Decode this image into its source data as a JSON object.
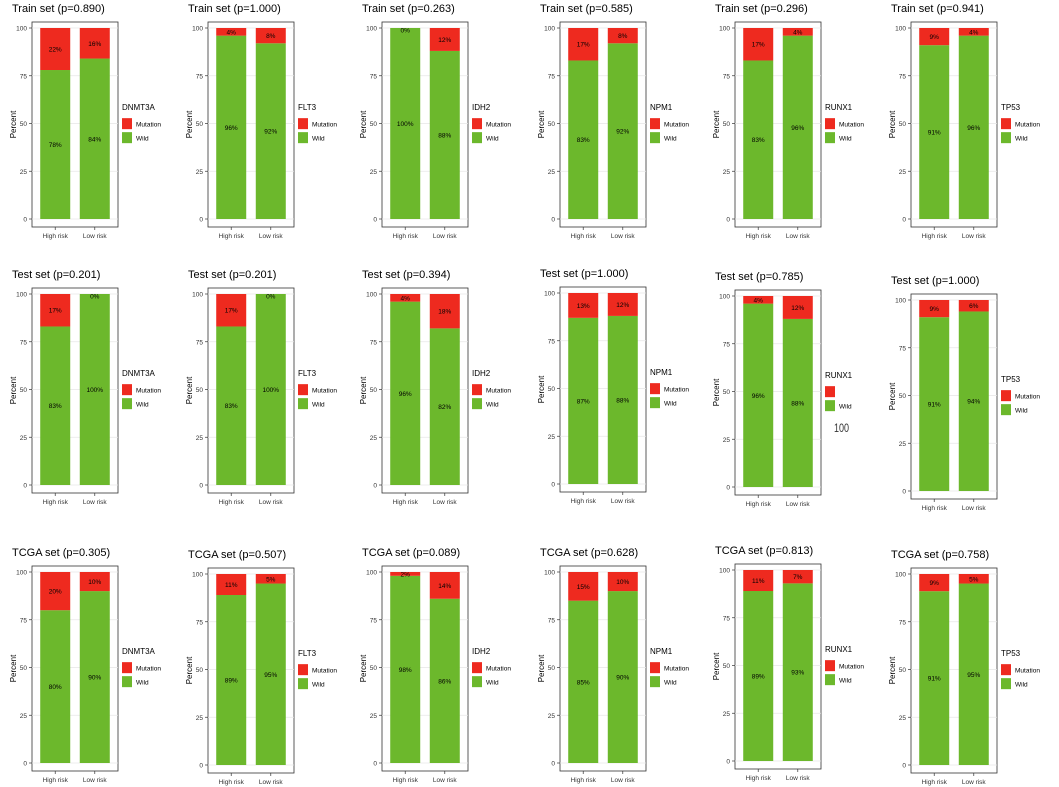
{
  "colors": {
    "mutation": "#ee2a1f",
    "wild": "#6cb82c",
    "grid": "#e6e6e6",
    "panel_border": "#333333"
  },
  "common": {
    "ylabel": "Percent",
    "y_ticks": [
      "0",
      "25",
      "50",
      "75",
      "100"
    ],
    "ylim": [
      0,
      100
    ],
    "categories": [
      "High risk",
      "Low risk"
    ],
    "legend_labels": [
      "Mutation",
      "Wild"
    ]
  },
  "stray_mark": "100",
  "chart_data": [
    {
      "type": "bar",
      "stacked": true,
      "title": "Train set (p=0.890)",
      "legend_title": "DNMT3A",
      "ylabel": "Percent",
      "categories": [
        "High risk",
        "Low risk"
      ],
      "series": [
        {
          "name": "Wild",
          "values": [
            78,
            84
          ],
          "labels": [
            "78%",
            "84%"
          ]
        },
        {
          "name": "Mutation",
          "values": [
            22,
            16
          ],
          "labels": [
            "22%",
            "16%"
          ]
        }
      ],
      "ylim": [
        0,
        100
      ],
      "grid": true,
      "legend_position": "right"
    },
    {
      "type": "bar",
      "stacked": true,
      "title": "Train set (p=1.000)",
      "legend_title": "FLT3",
      "ylabel": "Percent",
      "categories": [
        "High risk",
        "Low risk"
      ],
      "series": [
        {
          "name": "Wild",
          "values": [
            96,
            92
          ],
          "labels": [
            "96%",
            "92%"
          ]
        },
        {
          "name": "Mutation",
          "values": [
            4,
            8
          ],
          "labels": [
            "4%",
            "8%"
          ]
        }
      ],
      "ylim": [
        0,
        100
      ],
      "grid": true,
      "legend_position": "right"
    },
    {
      "type": "bar",
      "stacked": true,
      "title": "Train set (p=0.263)",
      "legend_title": "IDH2",
      "ylabel": "Percent",
      "categories": [
        "High risk",
        "Low risk"
      ],
      "series": [
        {
          "name": "Wild",
          "values": [
            100,
            88
          ],
          "labels": [
            "100%",
            "88%"
          ]
        },
        {
          "name": "Mutation",
          "values": [
            0,
            12
          ],
          "labels": [
            "0%",
            "12%"
          ]
        }
      ],
      "ylim": [
        0,
        100
      ],
      "grid": true,
      "legend_position": "right"
    },
    {
      "type": "bar",
      "stacked": true,
      "title": "Train set (p=0.585)",
      "legend_title": "NPM1",
      "ylabel": "Percent",
      "categories": [
        "High risk",
        "Low risk"
      ],
      "series": [
        {
          "name": "Wild",
          "values": [
            83,
            92
          ],
          "labels": [
            "83%",
            "92%"
          ]
        },
        {
          "name": "Mutation",
          "values": [
            17,
            8
          ],
          "labels": [
            "17%",
            "8%"
          ]
        }
      ],
      "ylim": [
        0,
        100
      ],
      "grid": true,
      "legend_position": "right"
    },
    {
      "type": "bar",
      "stacked": true,
      "title": "Train set (p=0.296)",
      "legend_title": "RUNX1",
      "ylabel": "Percent",
      "categories": [
        "High risk",
        "Low risk"
      ],
      "series": [
        {
          "name": "Wild",
          "values": [
            83,
            96
          ],
          "labels": [
            "83%",
            "96%"
          ]
        },
        {
          "name": "Mutation",
          "values": [
            17,
            4
          ],
          "labels": [
            "17%",
            "4%"
          ]
        }
      ],
      "ylim": [
        0,
        100
      ],
      "grid": true,
      "legend_position": "right"
    },
    {
      "type": "bar",
      "stacked": true,
      "title": "Train set (p=0.941)",
      "legend_title": "TP53",
      "ylabel": "Percent",
      "categories": [
        "High risk",
        "Low risk"
      ],
      "series": [
        {
          "name": "Wild",
          "values": [
            91,
            96
          ],
          "labels": [
            "91%",
            "96%"
          ]
        },
        {
          "name": "Mutation",
          "values": [
            9,
            4
          ],
          "labels": [
            "9%",
            "4%"
          ]
        }
      ],
      "ylim": [
        0,
        100
      ],
      "grid": true,
      "legend_position": "right"
    },
    {
      "type": "bar",
      "stacked": true,
      "title": "Test set (p=0.201)",
      "legend_title": "DNMT3A",
      "ylabel": "Percent",
      "categories": [
        "High risk",
        "Low risk"
      ],
      "series": [
        {
          "name": "Wild",
          "values": [
            83,
            100
          ],
          "labels": [
            "83%",
            "100%"
          ]
        },
        {
          "name": "Mutation",
          "values": [
            17,
            0
          ],
          "labels": [
            "17%",
            "0%"
          ]
        }
      ],
      "ylim": [
        0,
        100
      ],
      "grid": true,
      "legend_position": "right"
    },
    {
      "type": "bar",
      "stacked": true,
      "title": "Test set (p=0.201)",
      "legend_title": "FLT3",
      "ylabel": "Percent",
      "categories": [
        "High risk",
        "Low risk"
      ],
      "series": [
        {
          "name": "Wild",
          "values": [
            83,
            100
          ],
          "labels": [
            "83%",
            "100%"
          ]
        },
        {
          "name": "Mutation",
          "values": [
            17,
            0
          ],
          "labels": [
            "17%",
            "0%"
          ]
        }
      ],
      "ylim": [
        0,
        100
      ],
      "grid": true,
      "legend_position": "right"
    },
    {
      "type": "bar",
      "stacked": true,
      "title": "Test set (p=0.394)",
      "legend_title": "IDH2",
      "ylabel": "Percent",
      "categories": [
        "High risk",
        "Low risk"
      ],
      "series": [
        {
          "name": "Wild",
          "values": [
            96,
            82
          ],
          "labels": [
            "96%",
            "82%"
          ]
        },
        {
          "name": "Mutation",
          "values": [
            4,
            18
          ],
          "labels": [
            "4%",
            "18%"
          ]
        }
      ],
      "ylim": [
        0,
        100
      ],
      "grid": true,
      "legend_position": "right"
    },
    {
      "type": "bar",
      "stacked": true,
      "title": "Test set (p=1.000)",
      "legend_title": "NPM1",
      "ylabel": "Percent",
      "categories": [
        "High risk",
        "Low risk"
      ],
      "series": [
        {
          "name": "Wild",
          "values": [
            87,
            88
          ],
          "labels": [
            "87%",
            "88%"
          ]
        },
        {
          "name": "Mutation",
          "values": [
            13,
            12
          ],
          "labels": [
            "13%",
            "12%"
          ]
        }
      ],
      "ylim": [
        0,
        100
      ],
      "grid": true,
      "legend_position": "right"
    },
    {
      "type": "bar",
      "stacked": true,
      "title": "Test set (p=0.785)",
      "legend_title": "RUNX1",
      "ylabel": "Percent",
      "categories": [
        "High risk",
        "Low risk"
      ],
      "series": [
        {
          "name": "Wild",
          "values": [
            96,
            88
          ],
          "labels": [
            "96%",
            "88%"
          ]
        },
        {
          "name": "Mutation",
          "values": [
            4,
            12
          ],
          "labels": [
            "4%",
            "12%"
          ]
        }
      ],
      "ylim": [
        0,
        100
      ],
      "grid": true,
      "legend_position": "right",
      "legend_show_mutation_label": false
    },
    {
      "type": "bar",
      "stacked": true,
      "title": "Test set (p=1.000)",
      "legend_title": "TP53",
      "ylabel": "Percent",
      "categories": [
        "High risk",
        "Low risk"
      ],
      "series": [
        {
          "name": "Wild",
          "values": [
            91,
            94
          ],
          "labels": [
            "91%",
            "94%"
          ]
        },
        {
          "name": "Mutation",
          "values": [
            9,
            6
          ],
          "labels": [
            "9%",
            "6%"
          ]
        }
      ],
      "ylim": [
        0,
        100
      ],
      "grid": true,
      "legend_position": "right"
    },
    {
      "type": "bar",
      "stacked": true,
      "title": "TCGA set (p=0.305)",
      "legend_title": "DNMT3A",
      "ylabel": "Percent",
      "categories": [
        "High risk",
        "Low risk"
      ],
      "series": [
        {
          "name": "Wild",
          "values": [
            80,
            90
          ],
          "labels": [
            "80%",
            "90%"
          ]
        },
        {
          "name": "Mutation",
          "values": [
            20,
            10
          ],
          "labels": [
            "20%",
            "10%"
          ]
        }
      ],
      "ylim": [
        0,
        100
      ],
      "grid": true,
      "legend_position": "right"
    },
    {
      "type": "bar",
      "stacked": true,
      "title": "TCGA set (p=0.507)",
      "legend_title": "FLT3",
      "ylabel": "Percent",
      "categories": [
        "High risk",
        "Low risk"
      ],
      "series": [
        {
          "name": "Wild",
          "values": [
            89,
            95
          ],
          "labels": [
            "89%",
            "95%"
          ]
        },
        {
          "name": "Mutation",
          "values": [
            11,
            5
          ],
          "labels": [
            "11%",
            "5%"
          ]
        }
      ],
      "ylim": [
        0,
        100
      ],
      "grid": true,
      "legend_position": "right"
    },
    {
      "type": "bar",
      "stacked": true,
      "title": "TCGA set (p=0.089)",
      "legend_title": "IDH2",
      "ylabel": "Percent",
      "categories": [
        "High risk",
        "Low risk"
      ],
      "series": [
        {
          "name": "Wild",
          "values": [
            98,
            86
          ],
          "labels": [
            "98%",
            "86%"
          ]
        },
        {
          "name": "Mutation",
          "values": [
            2,
            14
          ],
          "labels": [
            "2%",
            "14%"
          ]
        }
      ],
      "ylim": [
        0,
        100
      ],
      "grid": true,
      "legend_position": "right"
    },
    {
      "type": "bar",
      "stacked": true,
      "title": "TCGA set (p=0.628)",
      "legend_title": "NPM1",
      "ylabel": "Percent",
      "categories": [
        "High risk",
        "Low risk"
      ],
      "series": [
        {
          "name": "Wild",
          "values": [
            85,
            90
          ],
          "labels": [
            "85%",
            "90%"
          ]
        },
        {
          "name": "Mutation",
          "values": [
            15,
            10
          ],
          "labels": [
            "15%",
            "10%"
          ]
        }
      ],
      "ylim": [
        0,
        100
      ],
      "grid": true,
      "legend_position": "right"
    },
    {
      "type": "bar",
      "stacked": true,
      "title": "TCGA set (p=0.813)",
      "legend_title": "RUNX1",
      "ylabel": "Percent",
      "categories": [
        "High risk",
        "Low risk"
      ],
      "series": [
        {
          "name": "Wild",
          "values": [
            89,
            93
          ],
          "labels": [
            "89%",
            "93%"
          ]
        },
        {
          "name": "Mutation",
          "values": [
            11,
            7
          ],
          "labels": [
            "11%",
            "7%"
          ]
        }
      ],
      "ylim": [
        0,
        100
      ],
      "grid": true,
      "legend_position": "right"
    },
    {
      "type": "bar",
      "stacked": true,
      "title": "TCGA set (p=0.758)",
      "legend_title": "TP53",
      "ylabel": "Percent",
      "categories": [
        "High risk",
        "Low risk"
      ],
      "series": [
        {
          "name": "Wild",
          "values": [
            91,
            95
          ],
          "labels": [
            "91%",
            "95%"
          ]
        },
        {
          "name": "Mutation",
          "values": [
            9,
            5
          ],
          "labels": [
            "9%",
            "5%"
          ]
        }
      ],
      "ylim": [
        0,
        100
      ],
      "grid": true,
      "legend_position": "right"
    }
  ]
}
